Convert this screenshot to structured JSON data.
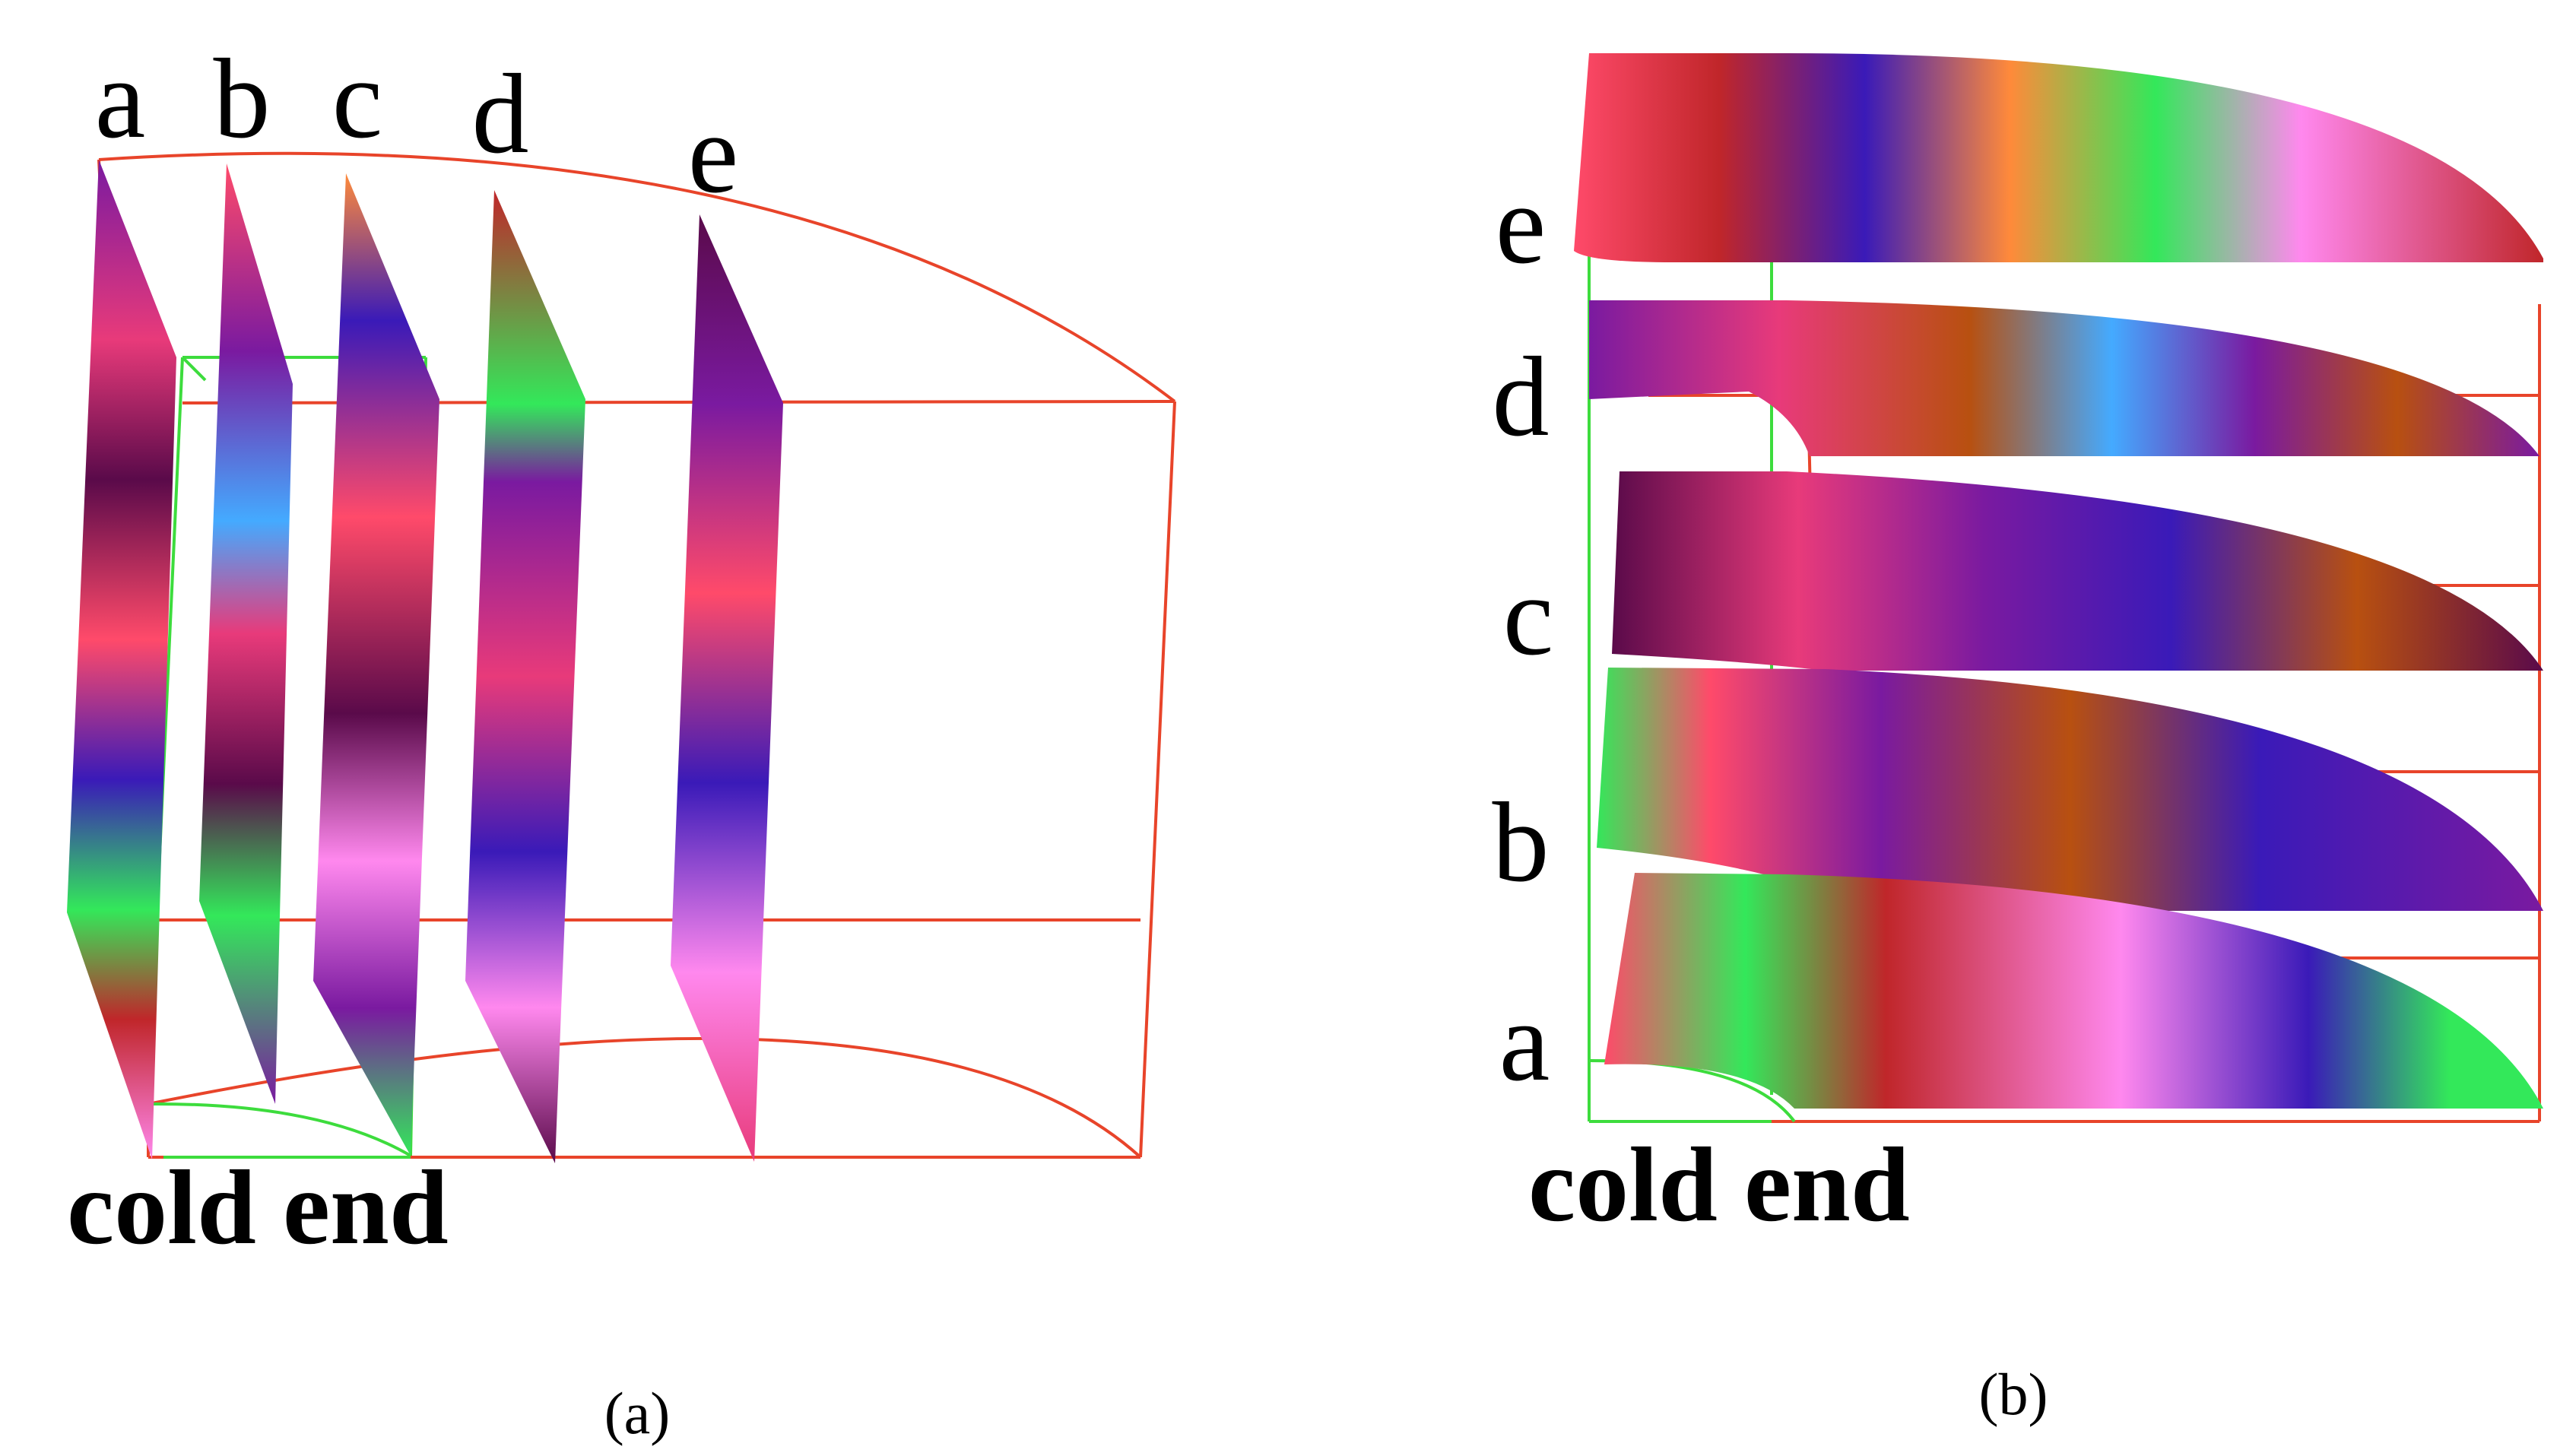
{
  "panel_a": {
    "slice_labels": [
      "a",
      "b",
      "c",
      "d",
      "e"
    ],
    "end_label": "cold end",
    "caption": "(a)"
  },
  "panel_b": {
    "slice_labels": [
      "e",
      "d",
      "c",
      "b",
      "a"
    ],
    "end_label": "cold end",
    "caption": "(b)"
  },
  "colors": {
    "outer_frame": "#e8442a",
    "inner_frame": "#3ddc3d",
    "grain_palette": [
      "#5a0a4a",
      "#7a1aa0",
      "#e83a7a",
      "#ff4a6a",
      "#c0262a",
      "#ff8a3a",
      "#b85010",
      "#ff88ee",
      "#3a1ab8",
      "#33e85a",
      "#44aaff",
      "#f5b070"
    ]
  }
}
